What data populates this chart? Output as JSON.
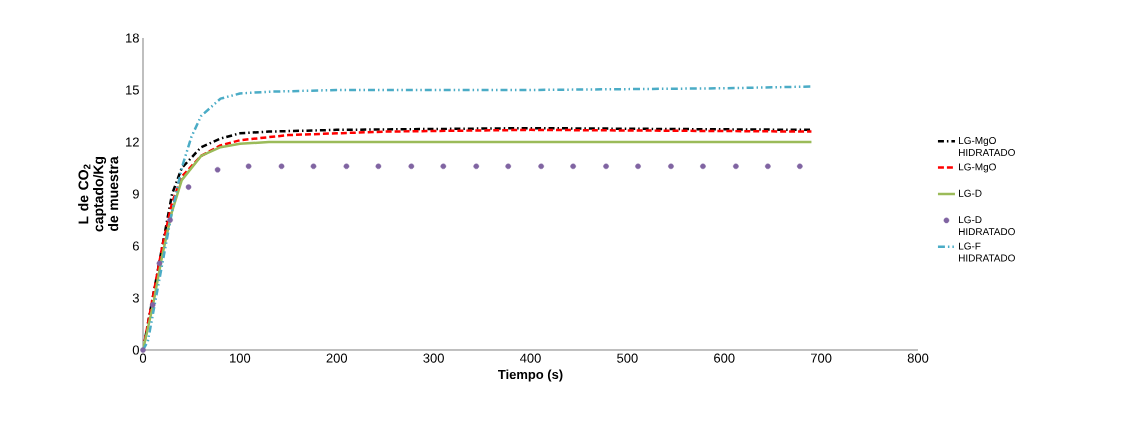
{
  "chart_data": {
    "type": "line",
    "xlabel": "Tiempo (s)",
    "ylabel": "L de CO$_{2}$  captado/Kg de muestra",
    "xlim": [
      0,
      800
    ],
    "ylim": [
      0,
      18
    ],
    "xticks": [
      0,
      100,
      200,
      300,
      400,
      500,
      600,
      700,
      800
    ],
    "yticks": [
      0,
      3,
      6,
      9,
      12,
      15,
      18
    ],
    "grid": false,
    "legend": "right",
    "series": [
      {
        "name": "LG-MgO HIDRATADO",
        "color": "#000000",
        "line_style": "dashdotted",
        "marker": "none",
        "x": [
          0,
          10,
          20,
          30,
          40,
          60,
          80,
          100,
          130,
          200,
          400,
          690
        ],
        "values": [
          0,
          3,
          6,
          9,
          10.5,
          11.7,
          12.2,
          12.5,
          12.6,
          12.7,
          12.8,
          12.7
        ]
      },
      {
        "name": "LG-MgO",
        "color": "#ff0000",
        "line_style": "dashed",
        "marker": "none",
        "x": [
          0,
          10,
          20,
          30,
          40,
          60,
          80,
          100,
          150,
          250,
          400,
          690
        ],
        "values": [
          0,
          3,
          6,
          8.5,
          10,
          11.2,
          11.8,
          12.1,
          12.4,
          12.6,
          12.7,
          12.6
        ]
      },
      {
        "name": "LG-D",
        "color": "#9bbb59",
        "line_style": "solid",
        "marker": "none",
        "x": [
          0,
          10,
          20,
          30,
          40,
          60,
          80,
          100,
          130,
          690
        ],
        "values": [
          0,
          2.5,
          5.5,
          8,
          9.8,
          11.2,
          11.7,
          11.9,
          12,
          12
        ]
      },
      {
        "name": "LG-D HIDRATADO",
        "color": "#8064a2",
        "type": "scatter",
        "marker": "circle",
        "x": [
          0,
          10,
          17,
          28,
          47,
          77,
          109,
          143,
          176,
          210,
          243,
          277,
          310,
          344,
          377,
          411,
          444,
          478,
          511,
          545,
          578,
          612,
          645,
          678
        ],
        "values": [
          0,
          2.6,
          5,
          7.5,
          9.4,
          10.4,
          10.6,
          10.6,
          10.6,
          10.6,
          10.6,
          10.6,
          10.6,
          10.6,
          10.6,
          10.6,
          10.6,
          10.6,
          10.6,
          10.6,
          10.6,
          10.6,
          10.6,
          10.6
        ]
      },
      {
        "name": "LG-F HIDRATADO",
        "color": "#4bacc6",
        "line_style": "dashdotdotted",
        "marker": "none",
        "x": [
          0,
          5,
          10,
          20,
          30,
          40,
          50,
          60,
          80,
          100,
          130,
          200,
          400,
          600,
          690
        ],
        "values": [
          0,
          0.5,
          2,
          5,
          8,
          10.5,
          12.3,
          13.5,
          14.5,
          14.8,
          14.9,
          15,
          15,
          15.1,
          15.2
        ]
      }
    ]
  }
}
